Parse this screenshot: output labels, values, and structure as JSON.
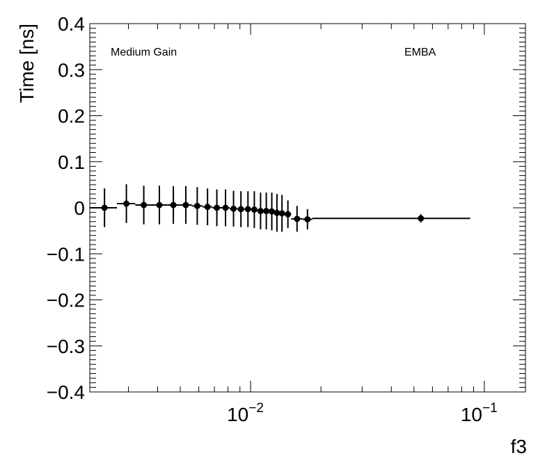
{
  "chart_data": {
    "type": "scatter",
    "xlabel": "f3",
    "ylabel": "Time [ns]",
    "xscale": "log",
    "xlim": [
      0.00205,
      0.15
    ],
    "ylim": [
      -0.4,
      0.4
    ],
    "annotations": [
      "Medium Gain",
      "EMBA"
    ],
    "y_ticks": [
      {
        "value": 0.4,
        "label": "0.4"
      },
      {
        "value": 0.3,
        "label": "0.3"
      },
      {
        "value": 0.2,
        "label": "0.2"
      },
      {
        "value": 0.1,
        "label": "0.1"
      },
      {
        "value": 0,
        "label": "0"
      },
      {
        "value": -0.1,
        "label": "−0.1"
      },
      {
        "value": -0.2,
        "label": "−0.2"
      },
      {
        "value": -0.3,
        "label": "−0.3"
      },
      {
        "value": -0.4,
        "label": "−0.4"
      }
    ],
    "x_ticks": [
      {
        "value": 0.01,
        "base": "10",
        "exp": "−2"
      },
      {
        "value": 0.1,
        "base": "10",
        "exp": "−1"
      }
    ],
    "series": [
      {
        "points": [
          {
            "x": 0.00237,
            "y": 0.0,
            "xerr": [
              0.00205,
              0.00268
            ],
            "yerr": 0.042
          },
          {
            "x": 0.00294,
            "y": 0.009,
            "xerr": [
              0.00268,
              0.00321
            ],
            "yerr": 0.042
          },
          {
            "x": 0.00349,
            "y": 0.006,
            "xerr": [
              0.00321,
              0.00377
            ],
            "yerr": 0.042
          },
          {
            "x": 0.00407,
            "y": 0.006,
            "xerr": [
              0.00377,
              0.00437
            ],
            "yerr": 0.042
          },
          {
            "x": 0.00467,
            "y": 0.006,
            "xerr": [
              0.00437,
              0.00497
            ],
            "yerr": 0.041
          },
          {
            "x": 0.00528,
            "y": 0.006,
            "xerr": [
              0.00497,
              0.0056
            ],
            "yerr": 0.041
          },
          {
            "x": 0.00591,
            "y": 0.004,
            "xerr": [
              0.0056,
              0.00623
            ],
            "yerr": 0.041
          },
          {
            "x": 0.00654,
            "y": 0.002,
            "xerr": [
              0.00623,
              0.00686
            ],
            "yerr": 0.04
          },
          {
            "x": 0.00717,
            "y": 0.0,
            "xerr": [
              0.00686,
              0.00749
            ],
            "yerr": 0.04
          },
          {
            "x": 0.00781,
            "y": 0.0,
            "xerr": [
              0.00749,
              0.00813
            ],
            "yerr": 0.04
          },
          {
            "x": 0.00845,
            "y": -0.002,
            "xerr": [
              0.00813,
              0.00877
            ],
            "yerr": 0.039
          },
          {
            "x": 0.00909,
            "y": -0.003,
            "xerr": [
              0.00877,
              0.00941
            ],
            "yerr": 0.039
          },
          {
            "x": 0.00974,
            "y": -0.003,
            "xerr": [
              0.00941,
              0.01006
            ],
            "yerr": 0.039
          },
          {
            "x": 0.01037,
            "y": -0.004,
            "xerr": [
              0.01006,
              0.01068
            ],
            "yerr": 0.04
          },
          {
            "x": 0.01103,
            "y": -0.007,
            "xerr": [
              0.01068,
              0.01135
            ],
            "yerr": 0.04
          },
          {
            "x": 0.01167,
            "y": -0.007,
            "xerr": [
              0.01135,
              0.01199
            ],
            "yerr": 0.04
          },
          {
            "x": 0.01232,
            "y": -0.008,
            "xerr": [
              0.01199,
              0.01264
            ],
            "yerr": 0.041
          },
          {
            "x": 0.01296,
            "y": -0.011,
            "xerr": [
              0.01264,
              0.01329
            ],
            "yerr": 0.041
          },
          {
            "x": 0.01362,
            "y": -0.012,
            "xerr": [
              0.01329,
              0.01396
            ],
            "yerr": 0.04
          },
          {
            "x": 0.01444,
            "y": -0.014,
            "xerr": [
              0.01396,
              0.01492
            ],
            "yerr": 0.03
          },
          {
            "x": 0.0158,
            "y": -0.024,
            "xerr": [
              0.01492,
              0.0167
            ],
            "yerr": 0.028
          },
          {
            "x": 0.01751,
            "y": -0.025,
            "xerr": [
              0.0167,
              0.01836
            ],
            "yerr": 0.022
          },
          {
            "x": 0.0535,
            "y": -0.023,
            "xerr": [
              0.01836,
              0.087
            ],
            "yerr": 0.009
          }
        ]
      }
    ]
  }
}
